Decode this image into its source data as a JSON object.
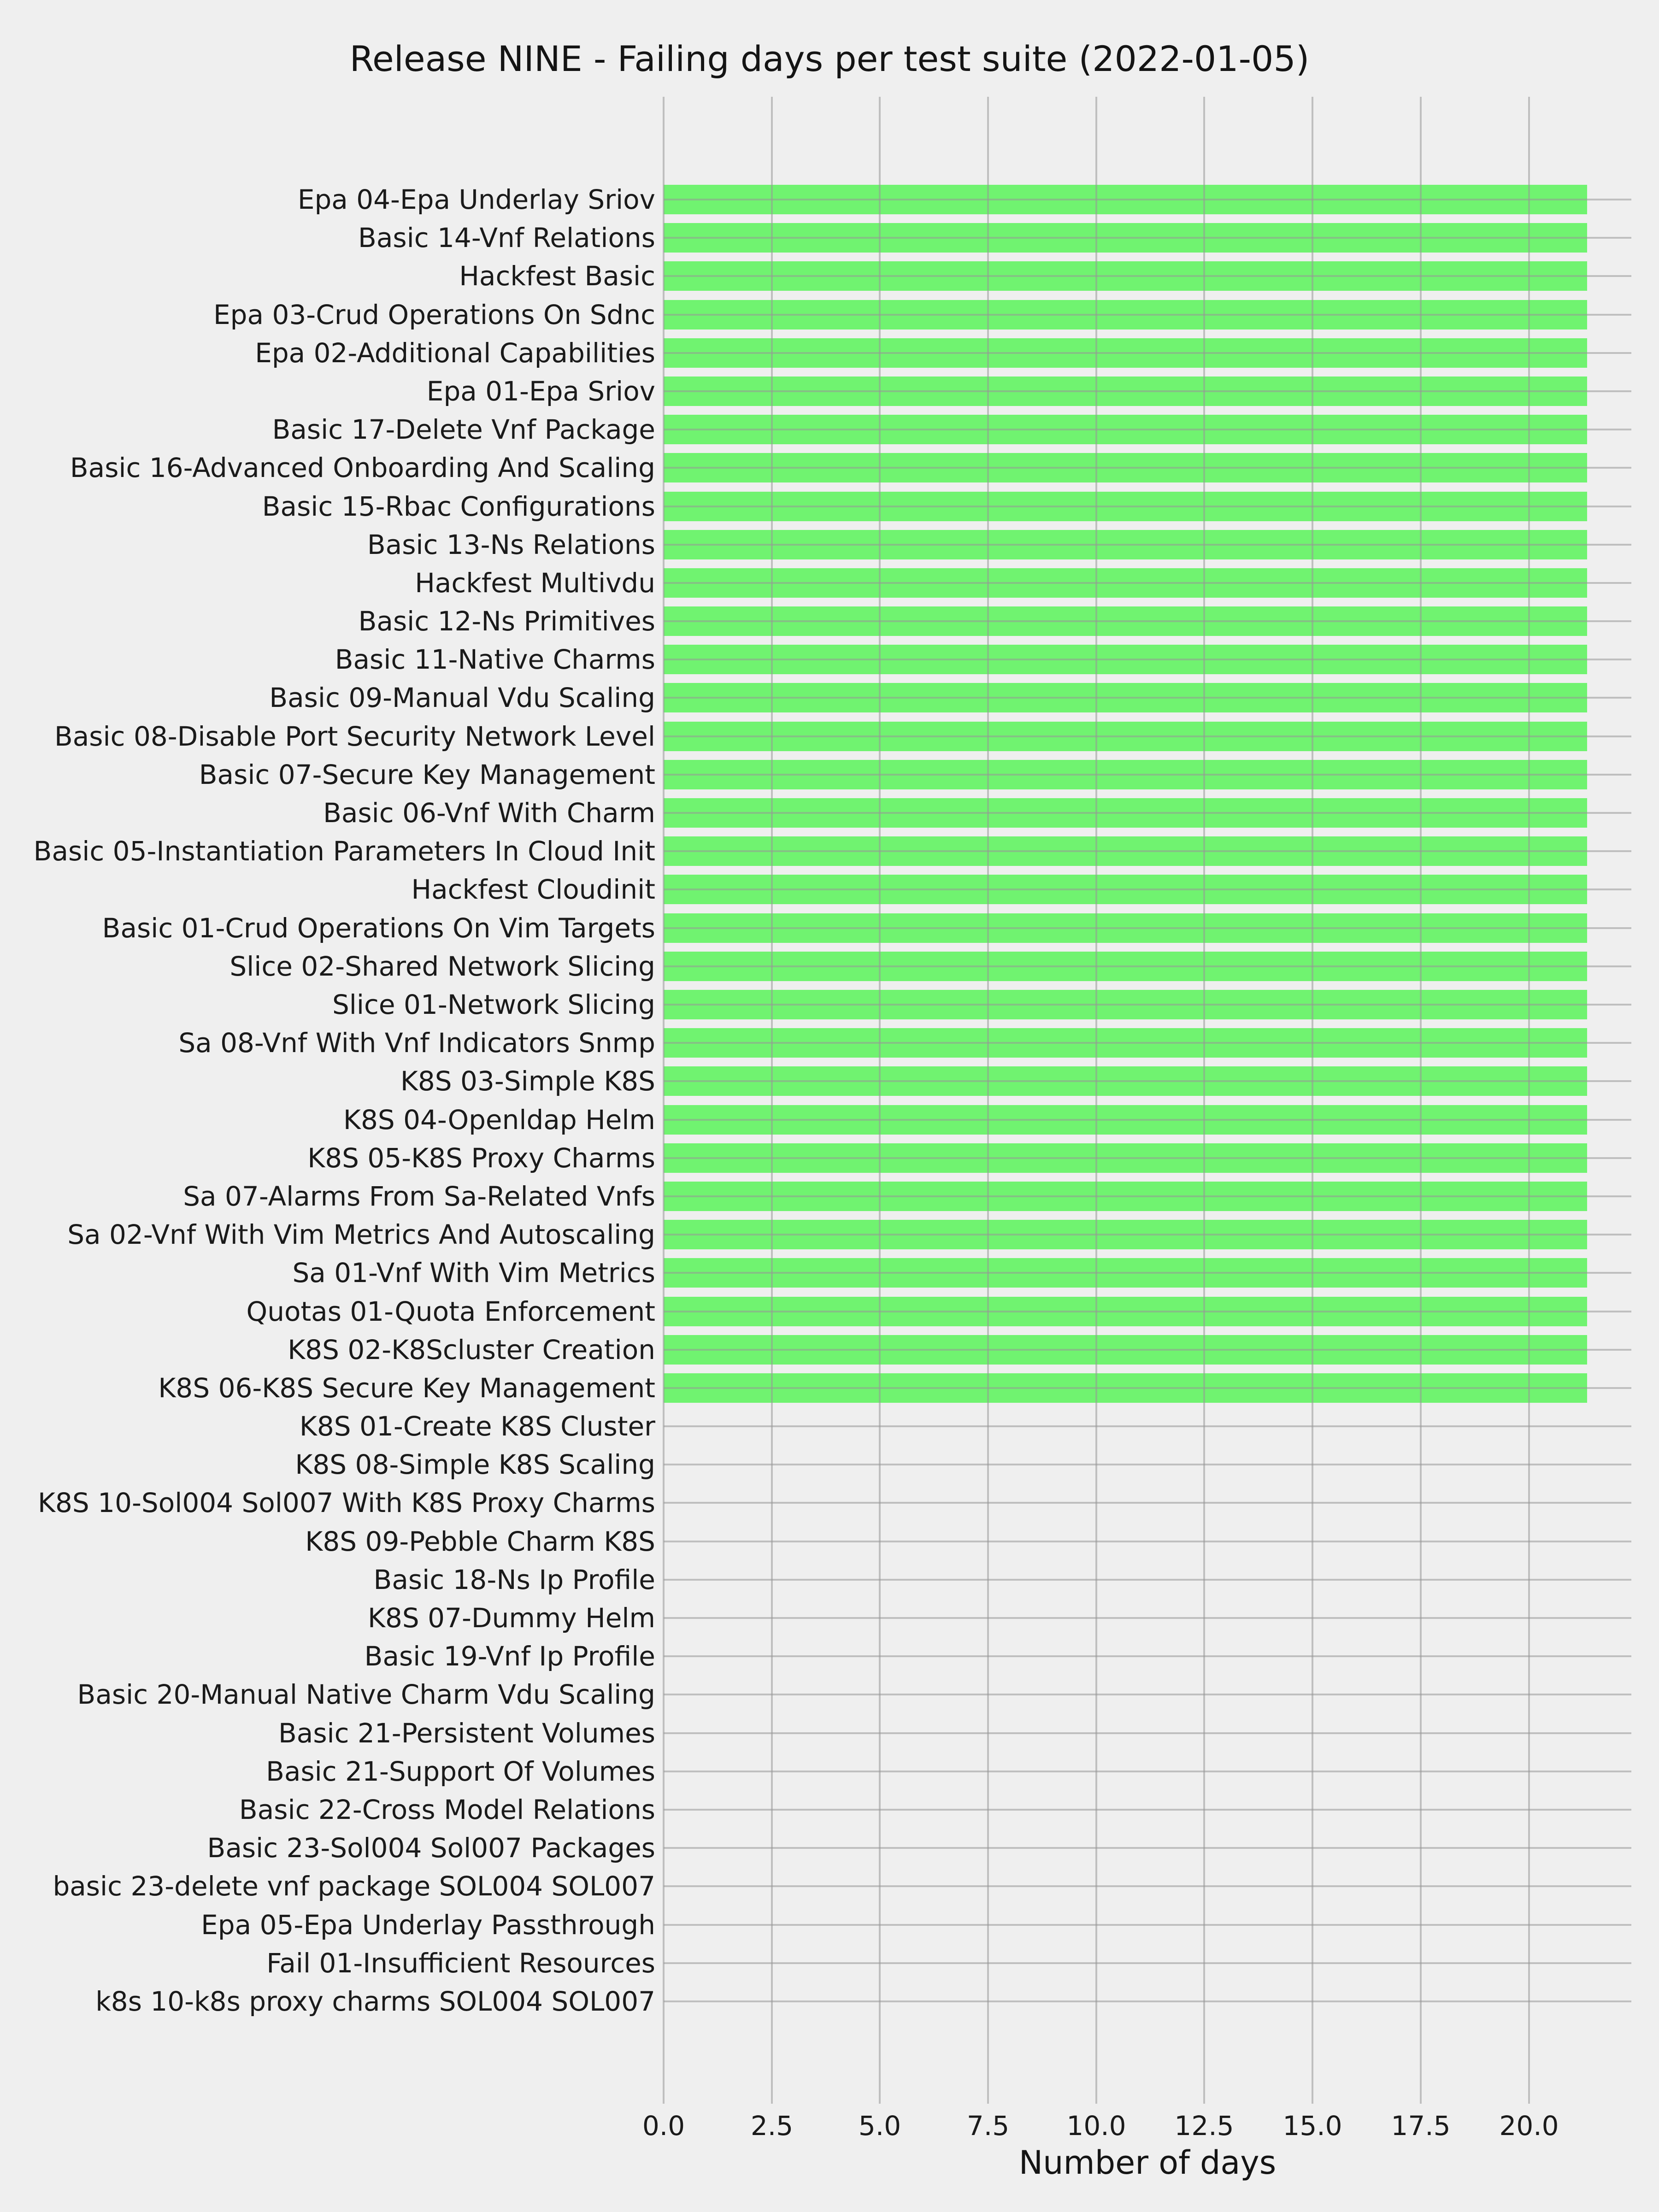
{
  "chart_data": {
    "type": "bar",
    "orientation": "horizontal",
    "title": "Release NINE - Failing days per test suite (2022-01-05)",
    "xlabel": "Number of days",
    "ylabel": "",
    "xlim": [
      0,
      22.37
    ],
    "xtick_labels": [
      "0.0",
      "2.5",
      "5.0",
      "7.5",
      "10.0",
      "12.5",
      "15.0",
      "17.5",
      "20.0"
    ],
    "grid": "both",
    "legend": "none",
    "colors": {
      "bar": "#70f370",
      "background": "#efefef",
      "grid": "#bfbfbf",
      "text": "#1a1a1a"
    },
    "categories": [
      "Epa 04-Epa Underlay Sriov",
      "Basic 14-Vnf Relations",
      "Hackfest Basic",
      "Epa 03-Crud Operations On Sdnc",
      "Epa 02-Additional Capabilities",
      "Epa 01-Epa Sriov",
      "Basic 17-Delete Vnf Package",
      "Basic 16-Advanced Onboarding And Scaling",
      "Basic 15-Rbac Configurations",
      "Basic 13-Ns Relations",
      "Hackfest Multivdu",
      "Basic 12-Ns Primitives",
      "Basic 11-Native Charms",
      "Basic 09-Manual Vdu Scaling",
      "Basic 08-Disable Port Security Network Level",
      "Basic 07-Secure Key Management",
      "Basic 06-Vnf With Charm",
      "Basic 05-Instantiation Parameters In Cloud Init",
      "Hackfest Cloudinit",
      "Basic 01-Crud Operations On Vim Targets",
      "Slice 02-Shared Network Slicing",
      "Slice 01-Network Slicing",
      "Sa 08-Vnf With Vnf Indicators Snmp",
      "K8S 03-Simple K8S",
      "K8S 04-Openldap Helm",
      "K8S 05-K8S Proxy Charms",
      "Sa 07-Alarms From Sa-Related Vnfs",
      "Sa 02-Vnf With Vim Metrics And Autoscaling",
      "Sa 01-Vnf With Vim Metrics",
      "Quotas 01-Quota Enforcement",
      "K8S 02-K8Scluster Creation",
      "K8S 06-K8S Secure Key Management",
      "K8S 01-Create K8S Cluster",
      "K8S 08-Simple K8S Scaling",
      "K8S 10-Sol004 Sol007 With K8S Proxy Charms",
      "K8S 09-Pebble Charm K8S",
      "Basic 18-Ns Ip Profile",
      "K8S 07-Dummy Helm",
      "Basic 19-Vnf Ip Profile",
      "Basic 20-Manual Native Charm Vdu Scaling",
      "Basic 21-Persistent Volumes",
      "Basic 21-Support Of Volumes",
      "Basic 22-Cross Model Relations",
      "Basic 23-Sol004 Sol007 Packages",
      "basic 23-delete vnf package SOL004 SOL007",
      "Epa 05-Epa Underlay Passthrough",
      "Fail 01-Insufficient Resources",
      "k8s 10-k8s proxy charms SOL004 SOL007"
    ],
    "values": [
      21.35,
      21.35,
      21.35,
      21.35,
      21.35,
      21.35,
      21.35,
      21.35,
      21.35,
      21.35,
      21.35,
      21.35,
      21.35,
      21.35,
      21.35,
      21.35,
      21.35,
      21.35,
      21.35,
      21.35,
      21.35,
      21.35,
      21.35,
      21.35,
      21.35,
      21.35,
      21.35,
      21.35,
      21.35,
      21.35,
      21.35,
      21.35,
      0,
      0,
      0,
      0,
      0,
      0,
      0,
      0,
      0,
      0,
      0,
      0,
      0,
      0,
      0,
      0
    ]
  }
}
